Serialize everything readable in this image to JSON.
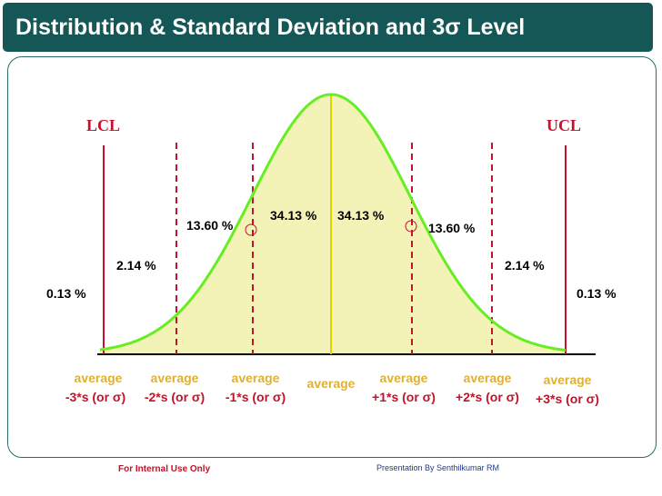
{
  "slide": {
    "title": "Distribution & Standard Deviation and 3σ Level",
    "footer_left": "For Internal Use Only",
    "footer_right": "Presentation By Senthilkumar RM"
  },
  "colors": {
    "title_bg": "#155756",
    "curve": "#66ee22",
    "fill": "#f3f3b8",
    "limit_lines": "#c8102e",
    "axis_labels_top": "#e0b030",
    "axis_labels_bottom": "#c0142a"
  },
  "diagram": {
    "lcl_label": "LCL",
    "ucl_label": "UCL",
    "percent_labels": {
      "outer_left": "0.13 %",
      "outer_right": "0.13 %",
      "third_left": "2.14 %",
      "third_right": "2.14 %",
      "second_left": "13.60 %",
      "second_right": "13.60 %",
      "first_left": "34.13 %",
      "first_right": "34.13 %"
    },
    "axis_labels": [
      {
        "top": "average",
        "bottom": "-3*s (or σ)"
      },
      {
        "top": "average",
        "bottom": "-2*s (or σ)"
      },
      {
        "top": "average",
        "bottom": "-1*s (or σ)"
      },
      {
        "top": "average",
        "bottom": ""
      },
      {
        "top": "average",
        "bottom": "+1*s (or σ)"
      },
      {
        "top": "average",
        "bottom": "+2*s (or σ)"
      },
      {
        "top": "average",
        "bottom": "+3*s (or σ)"
      }
    ]
  }
}
